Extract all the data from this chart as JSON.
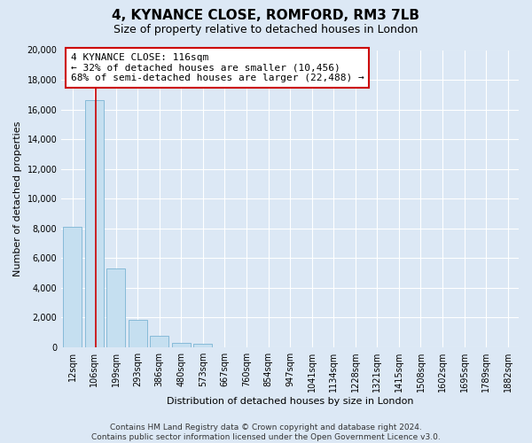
{
  "title": "4, KYNANCE CLOSE, ROMFORD, RM3 7LB",
  "subtitle": "Size of property relative to detached houses in London",
  "xlabel": "Distribution of detached houses by size in London",
  "ylabel": "Number of detached properties",
  "bar_labels": [
    "12sqm",
    "106sqm",
    "199sqm",
    "293sqm",
    "386sqm",
    "480sqm",
    "573sqm",
    "667sqm",
    "760sqm",
    "854sqm",
    "947sqm",
    "1041sqm",
    "1134sqm",
    "1228sqm",
    "1321sqm",
    "1415sqm",
    "1508sqm",
    "1602sqm",
    "1695sqm",
    "1789sqm",
    "1882sqm"
  ],
  "bar_values": [
    8100,
    16600,
    5300,
    1850,
    750,
    280,
    200,
    0,
    0,
    0,
    0,
    0,
    0,
    0,
    0,
    0,
    0,
    0,
    0,
    0,
    0
  ],
  "bar_color": "#c5dff0",
  "bar_edge_color": "#7ab4d4",
  "annotation_box_text": "4 KYNANCE CLOSE: 116sqm\n← 32% of detached houses are smaller (10,456)\n68% of semi-detached houses are larger (22,488) →",
  "vline_x": 1.07,
  "vline_color": "#cc0000",
  "ylim": [
    0,
    20000
  ],
  "yticks": [
    0,
    2000,
    4000,
    6000,
    8000,
    10000,
    12000,
    14000,
    16000,
    18000,
    20000
  ],
  "footer_line1": "Contains HM Land Registry data © Crown copyright and database right 2024.",
  "footer_line2": "Contains public sector information licensed under the Open Government Licence v3.0.",
  "bg_color": "#dce8f5",
  "plot_bg_color": "#dce8f5",
  "grid_color": "#ffffff",
  "title_fontsize": 11,
  "subtitle_fontsize": 9,
  "axis_label_fontsize": 8,
  "tick_fontsize": 7,
  "annotation_fontsize": 8,
  "footer_fontsize": 6.5
}
